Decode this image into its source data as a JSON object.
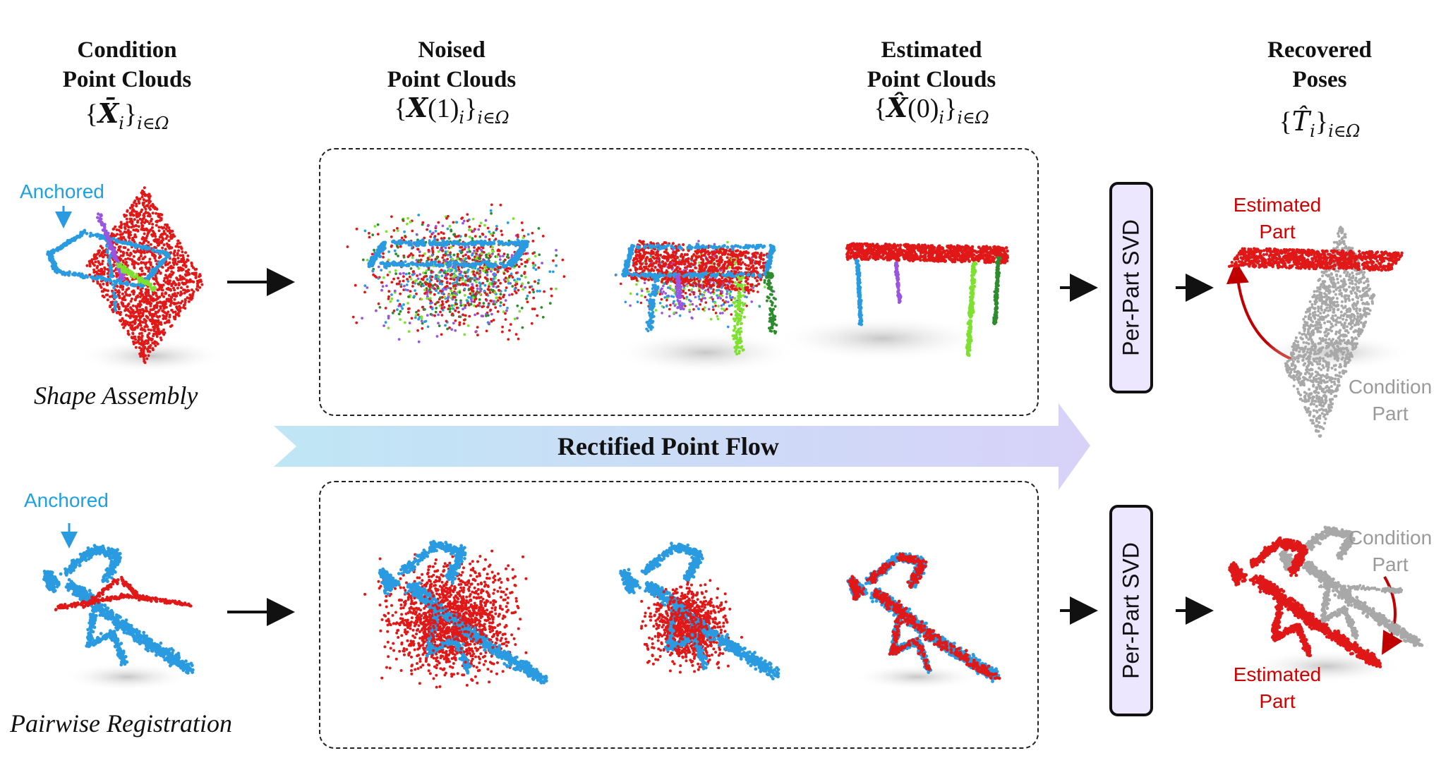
{
  "headers": {
    "condition": "Condition\nPoint Clouds",
    "noised": "Noised\nPoint Clouds",
    "estimated": "Estimated\nPoint Clouds",
    "recovered": "Recovered\nPoses"
  },
  "math": {
    "condition": {
      "symbol": "X̄",
      "sub_index": "i",
      "set": "i∈Ω"
    },
    "noised": {
      "symbol": "X",
      "arg": "(1)",
      "sub_index": "i",
      "set": "i∈Ω"
    },
    "estimated": {
      "symbol": "X̂",
      "arg": "(0)",
      "sub_index": "i",
      "set": "i∈Ω"
    },
    "recovered": {
      "symbol": "T̂",
      "sub_index": "i",
      "set": "i∈Ω"
    }
  },
  "rows": {
    "top": {
      "task": "Shape Assembly",
      "anchored": "Anchored",
      "svd": "Per-Part SVD",
      "estimated_part": "Estimated\nPart",
      "condition_part": "Condition\nPart"
    },
    "bottom": {
      "task": "Pairwise Registration",
      "anchored": "Anchored",
      "svd": "Per-Part SVD",
      "estimated_part": "Estimated\nPart",
      "condition_part": "Condition\nPart"
    }
  },
  "flow_label": "Rectified Point Flow",
  "colors": {
    "red": "#e01818",
    "blue": "#2a9be0",
    "purple": "#9a55e0",
    "green": "#7ee030",
    "darkgreen": "#2e8b2e",
    "gray": "#a8a8a8",
    "arrow_dark_red": "#c00000",
    "svd_fill": "#ece6ff",
    "flow_start": "#bfe6f5",
    "flow_end": "#d8d2f8"
  }
}
